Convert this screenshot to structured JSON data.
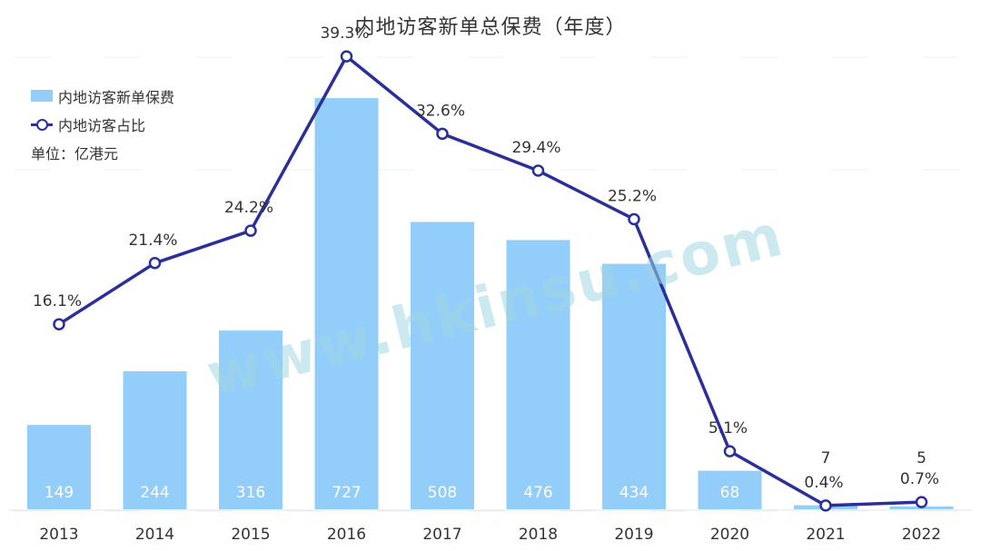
{
  "chart_data": {
    "type": "bar",
    "title": "内地访客新单总保费（年度）",
    "unit_label": "单位：亿港元",
    "categories": [
      "2013",
      "2014",
      "2015",
      "2016",
      "2017",
      "2018",
      "2019",
      "2020",
      "2021",
      "2022"
    ],
    "series": [
      {
        "name": "内地访客新单保费",
        "type": "bar",
        "values": [
          149,
          244,
          316,
          727,
          508,
          476,
          434,
          68,
          7,
          5
        ],
        "labels": [
          "149",
          "244",
          "316",
          "727",
          "508",
          "476",
          "434",
          "68",
          "7",
          "5"
        ],
        "color": "#93cdfa"
      },
      {
        "name": "内地访客占比",
        "type": "line",
        "values": [
          16.1,
          21.4,
          24.2,
          39.3,
          32.6,
          29.4,
          25.2,
          5.1,
          0.4,
          0.7
        ],
        "labels": [
          "16.1%",
          "21.4%",
          "24.2%",
          "39.3%",
          "32.6%",
          "29.4%",
          "25.2%",
          "5.1%",
          "0.4%",
          "0.7%"
        ],
        "color": "#2b2f98"
      }
    ],
    "legend": "top-left",
    "grid": false
  },
  "watermark": "www.hkinsu.com"
}
